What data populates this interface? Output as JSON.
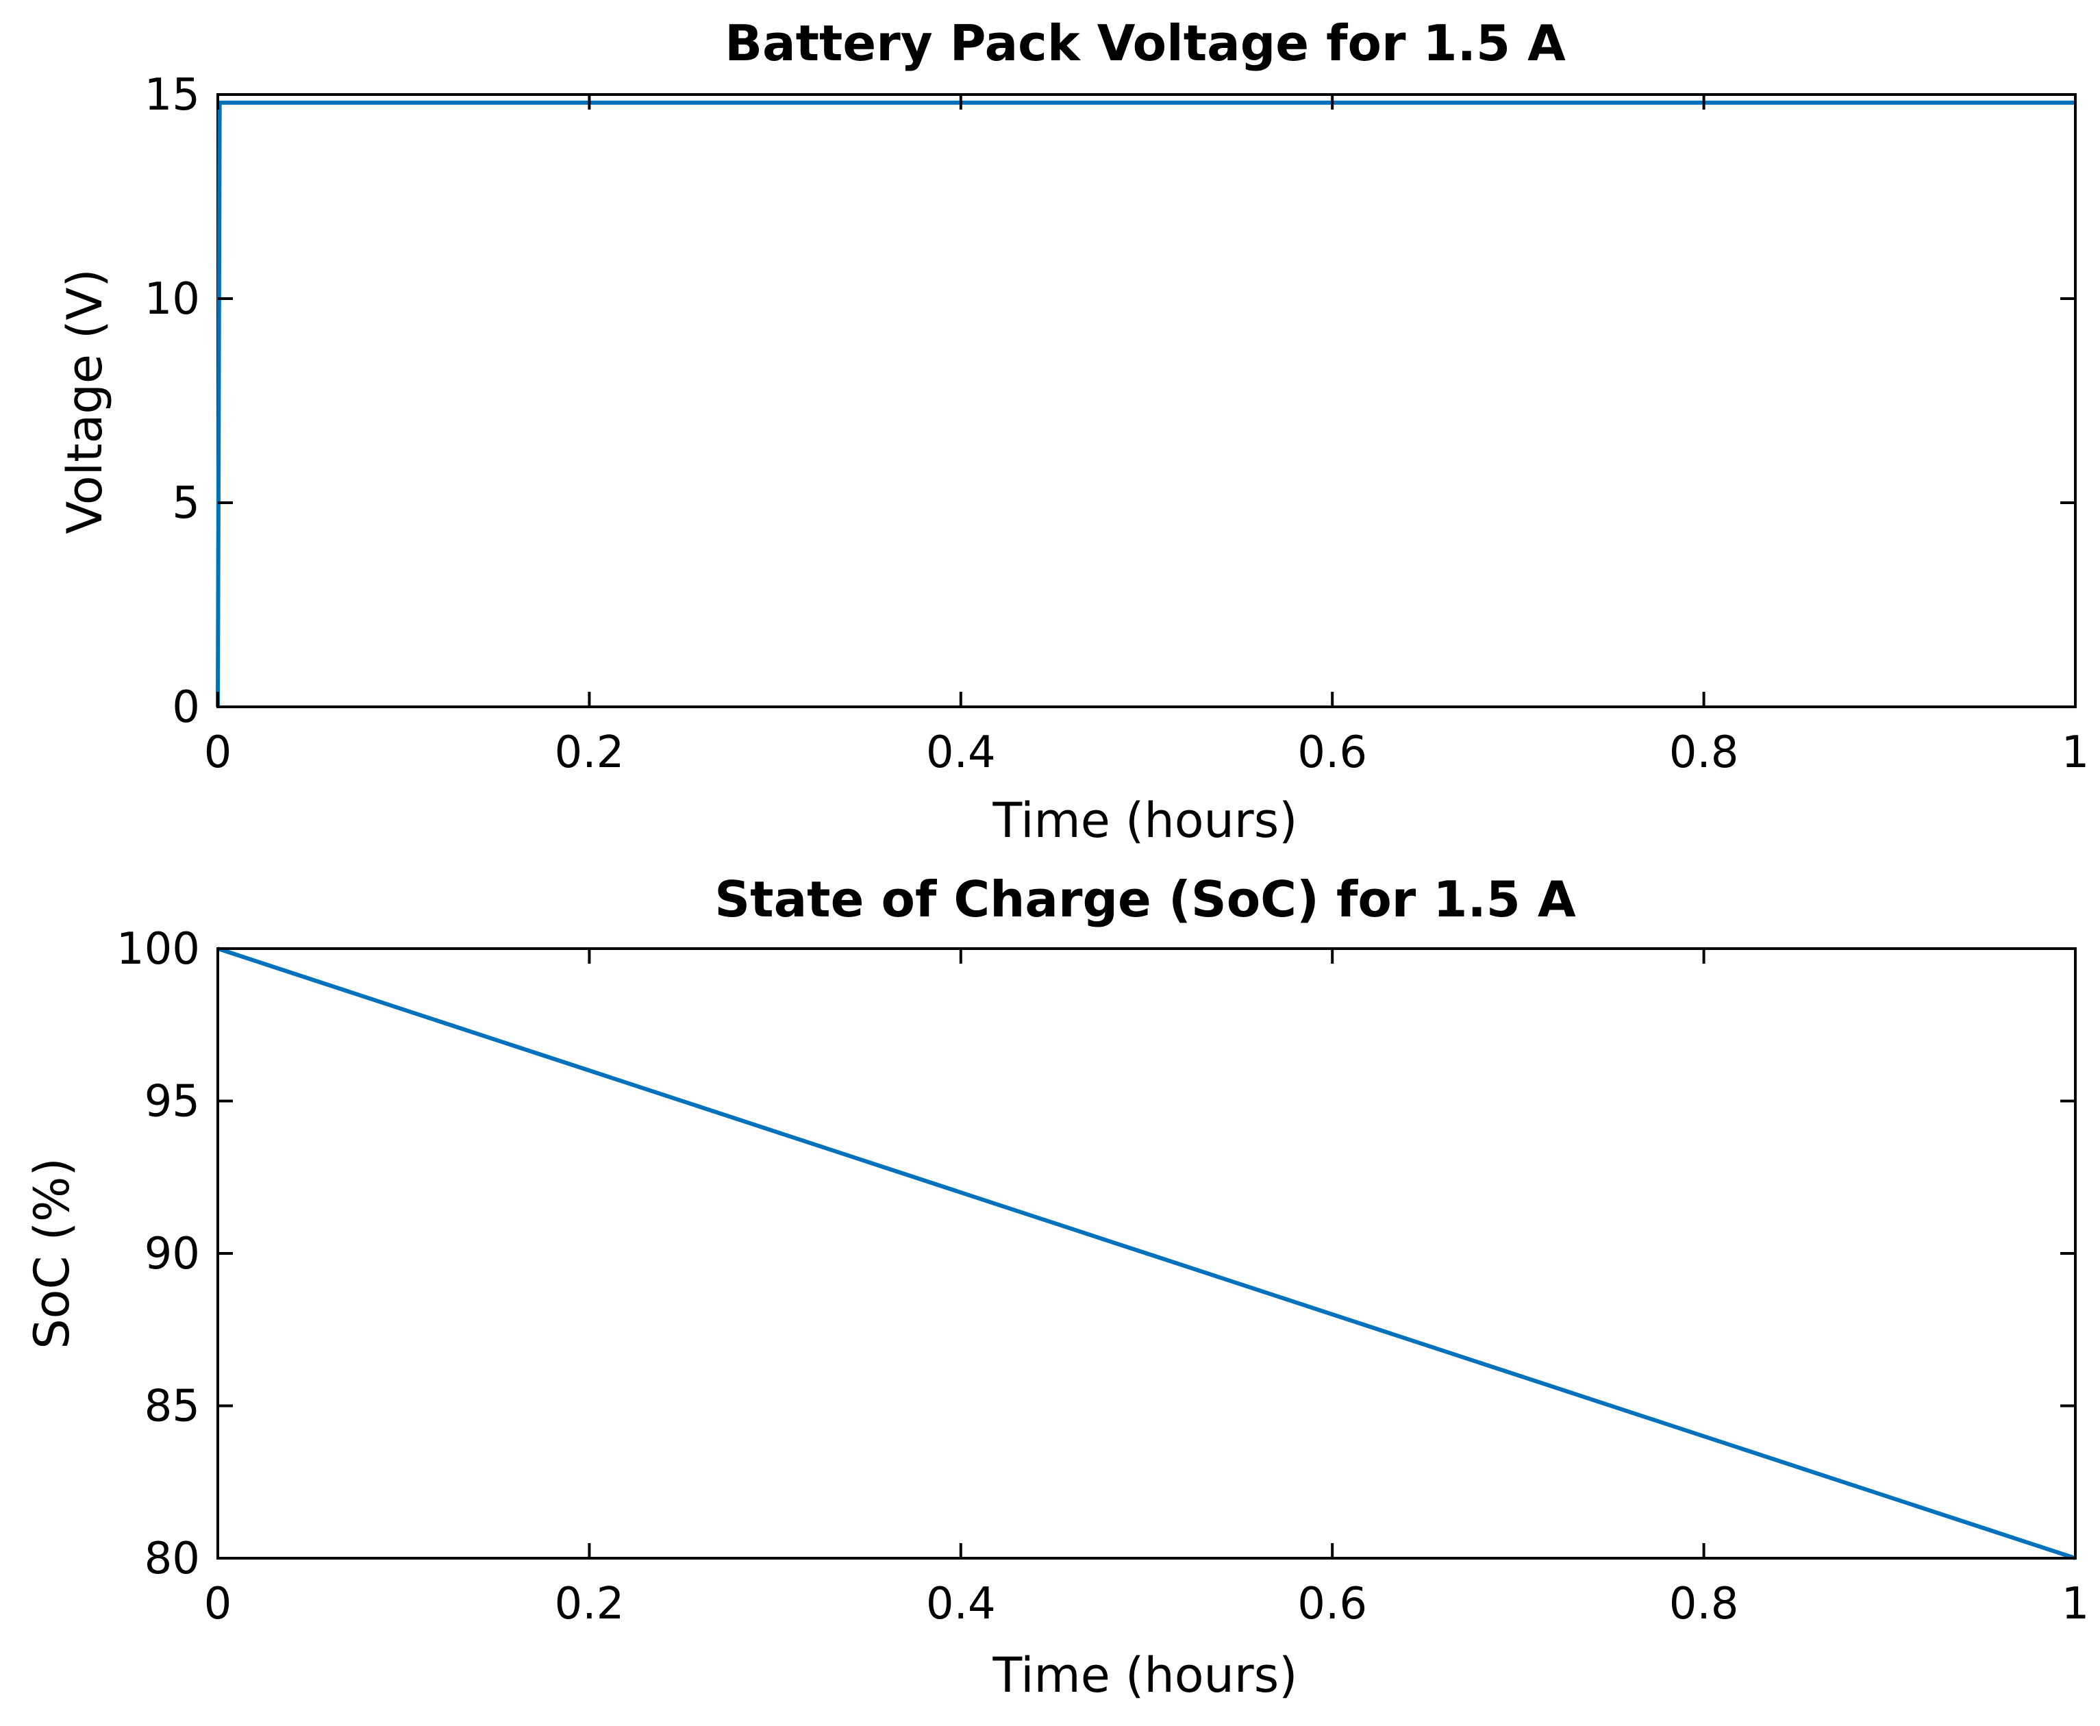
{
  "chart_data": [
    {
      "type": "line",
      "title": "Battery Pack Voltage for 1.5 A",
      "xlabel": "Time (hours)",
      "ylabel": "Voltage (V)",
      "xlim": [
        0,
        1
      ],
      "ylim": [
        0,
        15
      ],
      "xticks": [
        0,
        0.2,
        0.4,
        0.6,
        0.8,
        1
      ],
      "xtick_labels": [
        "0",
        "0.2",
        "0.4",
        "0.6",
        "0.8",
        "1"
      ],
      "yticks": [
        0,
        5,
        10,
        15
      ],
      "ytick_labels": [
        "0",
        "5",
        "10",
        "15"
      ],
      "grid": false,
      "series": [
        {
          "x": [
            0,
            0.001,
            1
          ],
          "y": [
            0,
            14.8,
            14.8
          ],
          "color": "#0072BD"
        }
      ]
    },
    {
      "type": "line",
      "title": "State of Charge (SoC) for 1.5 A",
      "xlabel": "Time (hours)",
      "ylabel": "SoC (%)",
      "xlim": [
        0,
        1
      ],
      "ylim": [
        80,
        100
      ],
      "xticks": [
        0,
        0.2,
        0.4,
        0.6,
        0.8,
        1
      ],
      "xtick_labels": [
        "0",
        "0.2",
        "0.4",
        "0.6",
        "0.8",
        "1"
      ],
      "yticks": [
        80,
        85,
        90,
        95,
        100
      ],
      "ytick_labels": [
        "80",
        "85",
        "90",
        "95",
        "100"
      ],
      "grid": false,
      "series": [
        {
          "x": [
            0,
            1
          ],
          "y": [
            100,
            80
          ],
          "color": "#0072BD"
        }
      ]
    }
  ]
}
